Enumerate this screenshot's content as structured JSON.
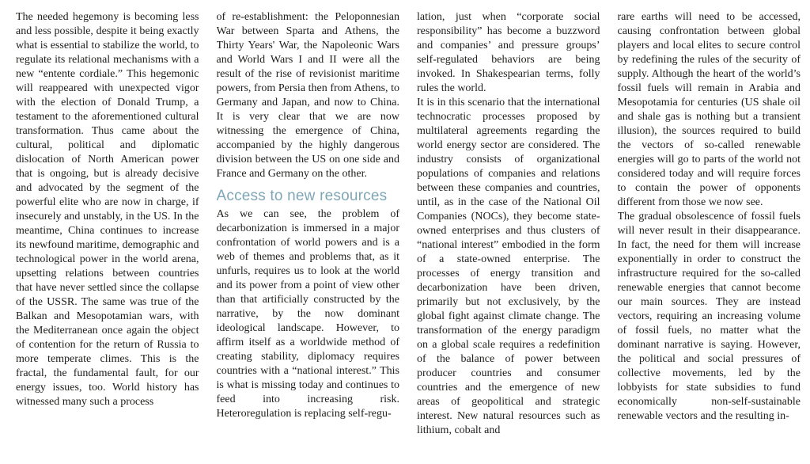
{
  "colors": {
    "background": "#ffffff",
    "body_text": "#1d1d1b",
    "heading": "#7fa6b6"
  },
  "article": {
    "section_heading": "Access to new resources"
  },
  "columns": {
    "col1": {
      "p1": "The needed hegemony is becoming less and less possible, despite it being exactly what is essential to stabilize the world, to regulate its relational mechanisms with a new “entente cordiale.” This hegemonic will reappeared with unexpected vigor with the election of Donald Trump, a testament to the aforementioned cultural transformation. Thus came about the cultural, political and diplomatic dislocation of North American power that is ongoing, but is already decisive and advocated by the segment of the powerful elite who are now in charge, if insecurely and unstably, in the US. In the meantime, China continues to increase its newfound maritime, demographic and technological power in the world arena, upsetting relations between countries that have never settled since the collapse of the USSR. The same was true of the Balkan and Mesopotamian wars, with the Mediterranean once again the object of contention for the return of Russia to more temperate climes. This is the fractal, the fundamental fault, for our energy issues, too. World history has witnessed many such a process"
    },
    "col2": {
      "p1": "of re-establishment: the Peloponnesian War between Sparta and Athens, the Thirty Years' War, the Napoleonic Wars and World Wars I and II were all the result of the rise of revisionist maritime powers, from Persia then from Athens, to Germany and Japan, and now to China. It is very clear that we are now witnessing the emergence of China, accompanied by the highly dangerous division between the US on one side and France and Germany on the other.",
      "heading": "Access to new resources",
      "p2": "As we can see, the problem of decarbonization is immersed in a major confrontation of world powers and is a web of themes and problems that, as it unfurls, requires us to look at the world and its power from a point of view other than that artificially constructed by the narrative, by the now dominant ideological landscape. However, to affirm itself as a worldwide method of creating stability, diplomacy requires countries with a “national interest.” This is what is missing today and continues to feed into increasing risk. Heteroregulation is replacing self-regu-"
    },
    "col3": {
      "p1": "lation, just when “corporate social responsibility” has become a buzzword and companies’ and pressure groups’ self-regulated behaviors are being invoked. In Shakespearian terms, folly rules the world.",
      "p2": "It is in this scenario that the international technocratic processes proposed by multilateral agreements regarding the world energy sector are considered. The industry consists of organizational populations of companies and relations between these companies and countries, until, as in the case of the National Oil Companies (NOCs), they become state-owned enterprises and thus clusters of “national interest” embodied in the form of a state-owned enterprise. The processes of energy transition and decarbonization have been driven, primarily but not exclusively, by the global fight against climate change. The transformation of the energy paradigm on a global scale requires a redefinition of the balance of power between producer countries and consumer countries and the emergence of new areas of geopolitical and strategic interest. New natural resources such as lithium, cobalt and"
    },
    "col4": {
      "p1": "rare earths will need to be accessed, causing confrontation between global players and local elites to secure control by redefining the rules of the security of supply. Although the heart of the world’s fossil fuels will remain in Arabia and Mesopotamia for centuries (US shale oil and shale gas is nothing but a transient illusion), the sources required to build the vectors of so-called renewable energies will go to parts of the world not considered today and will require forces to contain the power of opponents different from those we now see.",
      "p2": "The gradual obsolescence of fossil fuels will never result in their disappearance. In fact, the need for them will increase exponentially in order to construct the infrastructure required for the so-called renewable energies that cannot become our main sources. They are instead vectors, requiring an increasing volume of fossil fuels, no matter what the dominant narrative is saying. However, the political and social pressures of collective movements, led by the lobbyists for state subsidies to fund economically non-self-sustainable renewable vectors and the resulting in-"
    }
  }
}
